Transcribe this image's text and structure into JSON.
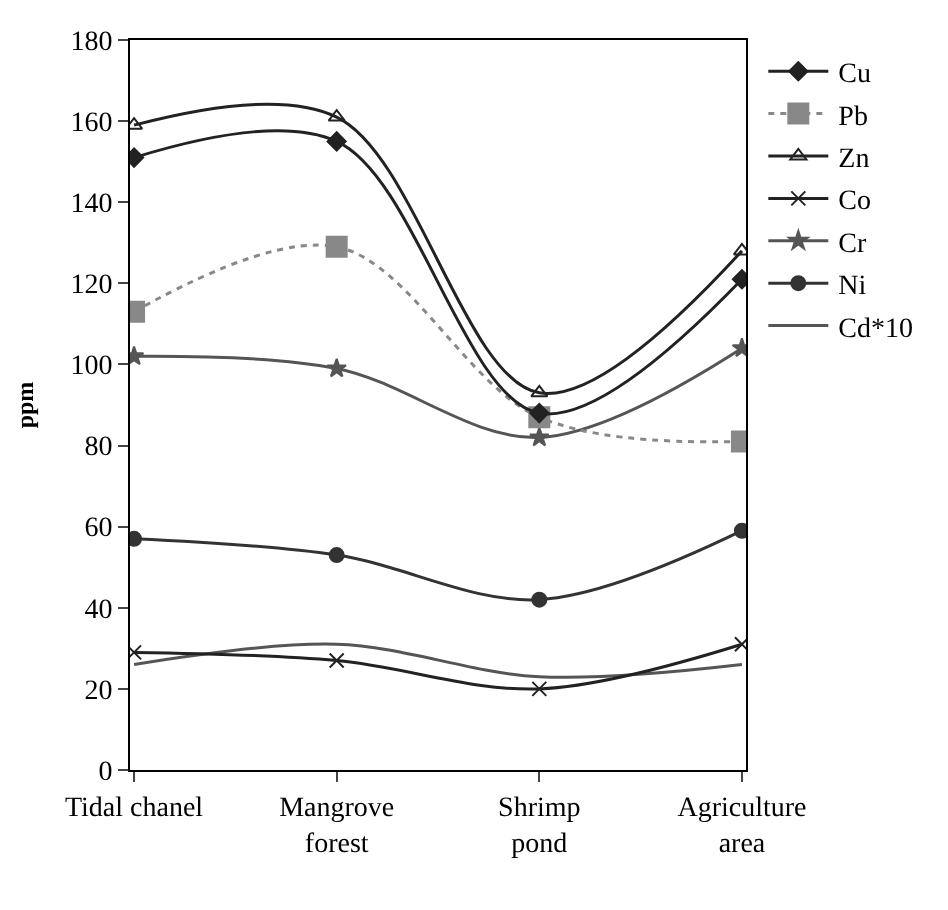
{
  "chart_data": {
    "type": "line",
    "ylabel": "ppm",
    "categories": [
      "Tidal chanel",
      "Mangrove\nforest",
      "Shrimp\npond",
      "Agriculture\narea"
    ],
    "series": [
      {
        "name": "Cu",
        "color": "#222222",
        "marker": "diamond",
        "line_style": "solid",
        "values": [
          151,
          155,
          88,
          121
        ]
      },
      {
        "name": "Pb",
        "color": "#888888",
        "marker": "square",
        "line_style": "dotted",
        "values": [
          113,
          129,
          87,
          81
        ]
      },
      {
        "name": "Zn",
        "color": "#222222",
        "marker": "triangle",
        "line_style": "solid",
        "values": [
          159,
          161,
          93,
          128
        ]
      },
      {
        "name": "Co",
        "color": "#222222",
        "marker": "cross",
        "line_style": "solid",
        "values": [
          29,
          27,
          20,
          31
        ]
      },
      {
        "name": "Cr",
        "color": "#555555",
        "marker": "star",
        "line_style": "solid",
        "values": [
          102,
          99,
          82,
          104
        ]
      },
      {
        "name": "Ni",
        "color": "#333333",
        "marker": "circle",
        "line_style": "solid",
        "values": [
          57,
          53,
          42,
          59
        ]
      },
      {
        "name": "Cd*10",
        "color": "#555555",
        "marker": "none",
        "line_style": "solid",
        "values": [
          26,
          31,
          23,
          26
        ]
      }
    ],
    "ylim": [
      0,
      180
    ],
    "yticks": [
      0,
      20,
      40,
      60,
      80,
      100,
      120,
      140,
      160,
      180
    ],
    "legend": "right"
  }
}
